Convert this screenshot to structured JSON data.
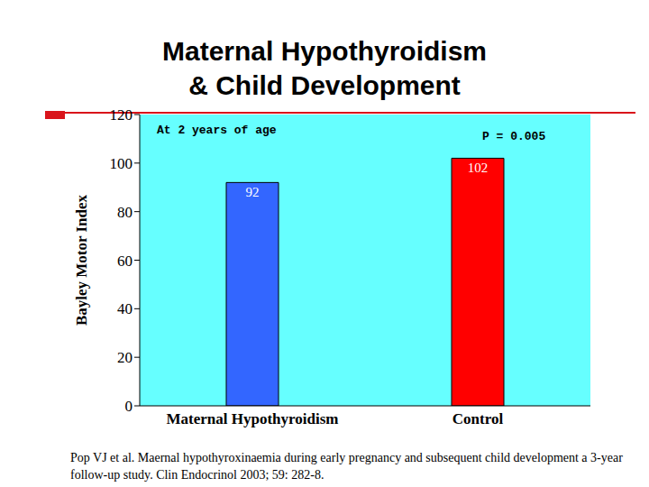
{
  "chart_data": {
    "type": "bar",
    "title": "Maternal Hypothyroidism & Child Development",
    "y_label": "Bayley Motor Index",
    "categories": [
      "Maternal Hypothyroidism",
      "Control"
    ],
    "values": [
      92,
      102
    ],
    "colors": [
      "#3366ff",
      "#ff0000"
    ],
    "ylim": [
      0,
      120
    ],
    "yticks": [
      0,
      20,
      40,
      60,
      80,
      100,
      120
    ],
    "grid": false,
    "data_labels": true,
    "annotations": [
      "At 2 years of age",
      "P = 0.005"
    ],
    "source": "Pop VJ et al. Maernal hypothyroxinaemia during early pregnancy and subsequent child development a 3-year follow-up study. Clin Endocrinol 2003; 59: 282-8."
  }
}
